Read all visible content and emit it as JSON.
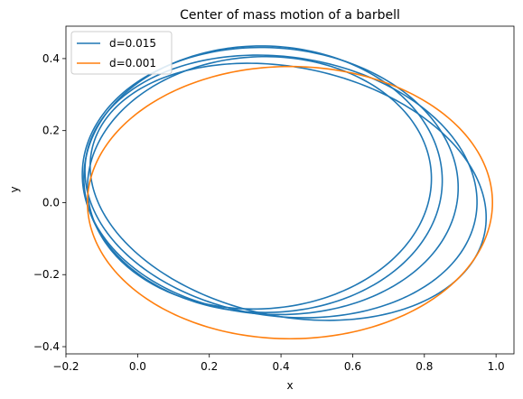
{
  "chart_data": {
    "type": "line",
    "title": "Center of mass motion of a barbell",
    "xlabel": "x",
    "ylabel": "y",
    "xlim": [
      -0.2,
      1.05
    ],
    "ylim": [
      -0.42,
      0.49
    ],
    "xticks": [
      -0.2,
      0.0,
      0.2,
      0.4,
      0.6,
      0.8,
      1.0
    ],
    "xtick_labels": [
      "−0.2",
      "0.0",
      "0.2",
      "0.4",
      "0.6",
      "0.8",
      "1.0"
    ],
    "yticks": [
      -0.4,
      -0.2,
      0.0,
      0.2,
      0.4
    ],
    "ytick_labels": [
      "−0.4",
      "−0.2",
      "0.0",
      "0.2",
      "0.4"
    ],
    "grid": false,
    "legend_position": "upper-left",
    "series": [
      {
        "name": "d=0.015",
        "color": "#1f77b4",
        "orbits": [
          {
            "cx": 0.42,
            "cy": 0.03,
            "rx": 0.56,
            "ry": 0.345,
            "rot_deg": -12
          },
          {
            "cx": 0.4,
            "cy": 0.045,
            "rx": 0.55,
            "ry": 0.36,
            "rot_deg": -8
          },
          {
            "cx": 0.37,
            "cy": 0.06,
            "rx": 0.525,
            "ry": 0.37,
            "rot_deg": -4
          },
          {
            "cx": 0.35,
            "cy": 0.065,
            "rx": 0.5,
            "ry": 0.37,
            "rot_deg": -1
          },
          {
            "cx": 0.34,
            "cy": 0.055,
            "rx": 0.48,
            "ry": 0.35,
            "rot_deg": 3
          }
        ]
      },
      {
        "name": "d=0.001",
        "color": "#ff7f0e",
        "orbits": [
          {
            "cx": 0.425,
            "cy": 0.0,
            "rx": 0.565,
            "ry": 0.378,
            "rot_deg": 0
          }
        ]
      }
    ]
  }
}
